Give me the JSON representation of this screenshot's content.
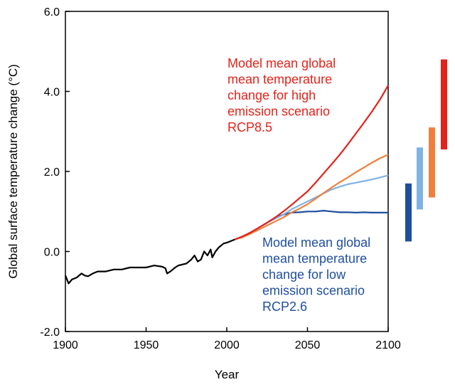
{
  "chart_data": {
    "type": "line",
    "title": "",
    "xlabel": "Year",
    "ylabel": "Global surface temperature change (°C)",
    "xlim": [
      1900,
      2100
    ],
    "ylim": [
      -2.0,
      6.0
    ],
    "x_ticks": [
      1900,
      1950,
      2000,
      2050,
      2100
    ],
    "x_tick_labels": [
      "1900",
      "1950",
      "2000",
      "2050",
      "2100"
    ],
    "y_ticks": [
      -2.0,
      0.0,
      2.0,
      4.0,
      6.0
    ],
    "y_tick_labels": [
      "-2.0",
      "0.0",
      "2.0",
      "4.0",
      "6.0"
    ],
    "grid": false,
    "series": [
      {
        "color": "#000000",
        "x": [
          1900,
          1902,
          1904,
          1907,
          1910,
          1912,
          1914,
          1917,
          1920,
          1925,
          1930,
          1935,
          1940,
          1945,
          1950,
          1955,
          1960,
          1962,
          1963,
          1965,
          1968,
          1970,
          1975,
          1978,
          1980,
          1982,
          1984,
          1986,
          1988,
          1990,
          1991,
          1993,
          1995,
          1998,
          2000,
          2005
        ],
        "y": [
          -0.6,
          -0.8,
          -0.7,
          -0.65,
          -0.55,
          -0.6,
          -0.62,
          -0.55,
          -0.5,
          -0.5,
          -0.45,
          -0.45,
          -0.4,
          -0.4,
          -0.4,
          -0.35,
          -0.38,
          -0.42,
          -0.55,
          -0.5,
          -0.4,
          -0.35,
          -0.3,
          -0.2,
          -0.1,
          -0.25,
          -0.2,
          0.0,
          -0.1,
          0.05,
          -0.15,
          0.0,
          0.1,
          0.2,
          0.22,
          0.3
        ]
      },
      {
        "name": "RCP2.6",
        "color": "#1f4e9e",
        "x": [
          2005,
          2010,
          2015,
          2020,
          2025,
          2030,
          2035,
          2040,
          2045,
          2050,
          2055,
          2060,
          2065,
          2070,
          2075,
          2080,
          2085,
          2090,
          2095,
          2100
        ],
        "y": [
          0.3,
          0.38,
          0.48,
          0.6,
          0.72,
          0.85,
          0.92,
          0.97,
          0.98,
          1.0,
          1.0,
          1.02,
          1.0,
          0.98,
          0.98,
          0.97,
          0.98,
          0.97,
          0.97,
          0.97
        ]
      },
      {
        "color": "#7fb2e5",
        "x": [
          2005,
          2010,
          2015,
          2020,
          2025,
          2030,
          2035,
          2040,
          2045,
          2050,
          2055,
          2060,
          2065,
          2070,
          2075,
          2080,
          2085,
          2090,
          2095,
          2100
        ],
        "y": [
          0.3,
          0.38,
          0.48,
          0.6,
          0.72,
          0.82,
          0.92,
          1.05,
          1.15,
          1.25,
          1.35,
          1.45,
          1.55,
          1.62,
          1.68,
          1.72,
          1.76,
          1.8,
          1.85,
          1.9
        ]
      },
      {
        "color": "#f07f3c",
        "x": [
          2005,
          2010,
          2015,
          2020,
          2025,
          2030,
          2035,
          2040,
          2045,
          2050,
          2055,
          2060,
          2065,
          2070,
          2075,
          2080,
          2085,
          2090,
          2095,
          2100
        ],
        "y": [
          0.3,
          0.36,
          0.45,
          0.55,
          0.65,
          0.75,
          0.85,
          0.97,
          1.07,
          1.18,
          1.32,
          1.46,
          1.6,
          1.73,
          1.85,
          1.98,
          2.1,
          2.22,
          2.33,
          2.42
        ]
      },
      {
        "name": "RCP8.5",
        "color": "#e2231a",
        "x": [
          2005,
          2010,
          2015,
          2020,
          2025,
          2030,
          2035,
          2040,
          2045,
          2050,
          2055,
          2060,
          2065,
          2070,
          2075,
          2080,
          2085,
          2090,
          2095,
          2100
        ],
        "y": [
          0.3,
          0.38,
          0.48,
          0.6,
          0.72,
          0.85,
          1.0,
          1.16,
          1.33,
          1.5,
          1.72,
          1.95,
          2.18,
          2.42,
          2.68,
          2.95,
          3.22,
          3.5,
          3.8,
          4.15
        ]
      }
    ],
    "range_bars": [
      {
        "color": "#1f4e9e",
        "low": 0.25,
        "high": 1.7
      },
      {
        "color": "#7fb2e5",
        "low": 1.05,
        "high": 2.6
      },
      {
        "color": "#f07f3c",
        "low": 1.35,
        "high": 3.1
      },
      {
        "color": "#e2231a",
        "low": 2.55,
        "high": 4.8
      }
    ],
    "annotations": [
      {
        "color": "#e2231a",
        "lines": [
          "Model mean global",
          "mean temperature",
          "change for high",
          "emission scenario",
          "RCP8.5"
        ]
      },
      {
        "color": "#1f4e9e",
        "lines": [
          "Model mean global",
          "mean temperature",
          "change for low",
          "emission scenario",
          "RCP2.6"
        ]
      }
    ]
  }
}
